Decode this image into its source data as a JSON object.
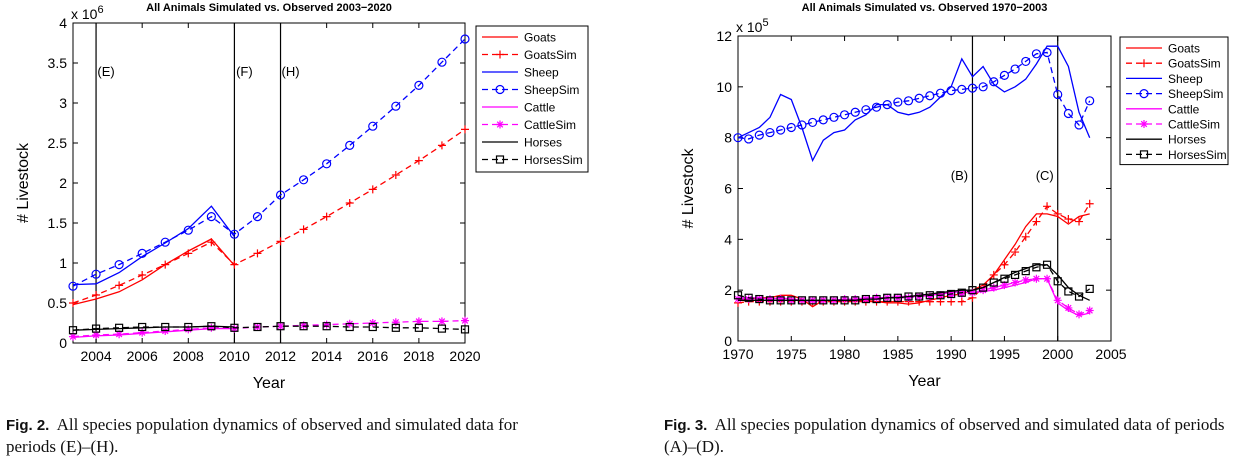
{
  "chart_data": [
    {
      "type": "line",
      "title": "All Animals Simulated vs. Observed 2003−2020",
      "xlabel": "Year",
      "ylabel": "# Livestock",
      "exponent_base": "x 10",
      "exponent_power": "6",
      "xlim": [
        2003,
        2020
      ],
      "ylim": [
        0,
        4
      ],
      "xticks": [
        "2004",
        "2006",
        "2008",
        "2010",
        "2012",
        "2014",
        "2016",
        "2018",
        "2020"
      ],
      "yticks": [
        "0",
        "0.5",
        "1",
        "1.5",
        "2",
        "2.5",
        "3",
        "3.5",
        "4"
      ],
      "vlines": [
        {
          "label": "(E)",
          "x": 2004
        },
        {
          "label": "(F)",
          "x": 2010
        },
        {
          "label": "(H)",
          "x": 2012
        }
      ],
      "legend_position": "top-right",
      "series": [
        {
          "name": "Goats",
          "color": "#ff0000",
          "dash": "solid",
          "marker": "none",
          "x": [
            2003,
            2004,
            2005,
            2006,
            2007,
            2008,
            2009,
            2010
          ],
          "y": [
            0.48,
            0.55,
            0.64,
            0.79,
            0.98,
            1.15,
            1.3,
            0.97
          ]
        },
        {
          "name": "GoatsSim",
          "color": "#ff0000",
          "dash": "dashed",
          "marker": "plus",
          "x": [
            2003,
            2004,
            2005,
            2006,
            2007,
            2008,
            2009,
            2010,
            2011,
            2012,
            2013,
            2014,
            2015,
            2016,
            2017,
            2018,
            2019,
            2020
          ],
          "y": [
            0.5,
            0.6,
            0.72,
            0.85,
            0.98,
            1.12,
            1.26,
            0.98,
            1.12,
            1.27,
            1.42,
            1.58,
            1.75,
            1.92,
            2.1,
            2.28,
            2.47,
            2.67
          ]
        },
        {
          "name": "Sheep",
          "color": "#0000ff",
          "dash": "solid",
          "marker": "none",
          "x": [
            2003,
            2004,
            2005,
            2006,
            2007,
            2008,
            2009,
            2010
          ],
          "y": [
            0.73,
            0.74,
            0.88,
            1.08,
            1.25,
            1.43,
            1.71,
            1.33
          ]
        },
        {
          "name": "SheepSim",
          "color": "#0000ff",
          "dash": "dashed",
          "marker": "circle",
          "x": [
            2003,
            2004,
            2005,
            2006,
            2007,
            2008,
            2009,
            2010,
            2011,
            2012,
            2013,
            2014,
            2015,
            2016,
            2017,
            2018,
            2019,
            2020
          ],
          "y": [
            0.71,
            0.86,
            0.98,
            1.12,
            1.26,
            1.41,
            1.58,
            1.36,
            1.58,
            1.85,
            2.04,
            2.24,
            2.47,
            2.71,
            2.96,
            3.22,
            3.51,
            3.8
          ]
        },
        {
          "name": "Cattle",
          "color": "#ff00ff",
          "dash": "solid",
          "marker": "none",
          "x": [
            2003,
            2004,
            2005,
            2006,
            2007,
            2008,
            2009,
            2010
          ],
          "y": [
            0.07,
            0.09,
            0.1,
            0.12,
            0.14,
            0.16,
            0.18,
            0.18
          ]
        },
        {
          "name": "CattleSim",
          "color": "#ff00ff",
          "dash": "dashed",
          "marker": "asterisk",
          "x": [
            2003,
            2004,
            2005,
            2006,
            2007,
            2008,
            2009,
            2010,
            2011,
            2012,
            2013,
            2014,
            2015,
            2016,
            2017,
            2018,
            2019,
            2020
          ],
          "y": [
            0.08,
            0.1,
            0.11,
            0.13,
            0.15,
            0.17,
            0.19,
            0.18,
            0.2,
            0.21,
            0.22,
            0.23,
            0.24,
            0.25,
            0.26,
            0.27,
            0.27,
            0.28
          ]
        },
        {
          "name": "Horses",
          "color": "#000000",
          "dash": "solid",
          "marker": "none",
          "x": [
            2003,
            2004,
            2005,
            2006,
            2007,
            2008,
            2009,
            2010
          ],
          "y": [
            0.16,
            0.17,
            0.18,
            0.19,
            0.2,
            0.2,
            0.21,
            0.2
          ]
        },
        {
          "name": "HorsesSim",
          "color": "#000000",
          "dash": "dashed",
          "marker": "square",
          "x": [
            2003,
            2004,
            2005,
            2006,
            2007,
            2008,
            2009,
            2010,
            2011,
            2012,
            2013,
            2014,
            2015,
            2016,
            2017,
            2018,
            2019,
            2020
          ],
          "y": [
            0.16,
            0.18,
            0.19,
            0.2,
            0.2,
            0.2,
            0.21,
            0.19,
            0.2,
            0.21,
            0.21,
            0.21,
            0.2,
            0.2,
            0.19,
            0.19,
            0.18,
            0.17
          ]
        }
      ]
    },
    {
      "type": "line",
      "title": "All Animals Simulated vs. Observed 1970−2003",
      "xlabel": "Year",
      "ylabel": "# Livestock",
      "exponent_base": "x 10",
      "exponent_power": "5",
      "xlim": [
        1970,
        2005
      ],
      "ylim": [
        0,
        12
      ],
      "xticks": [
        "1970",
        "1975",
        "1980",
        "1985",
        "1990",
        "1995",
        "2000",
        "2005"
      ],
      "yticks": [
        "0",
        "2",
        "4",
        "6",
        "8",
        "10",
        "12"
      ],
      "vlines": [
        {
          "label": "(B)",
          "x": 1992
        },
        {
          "label": "(C)",
          "x": 2000
        }
      ],
      "legend_position": "top-right",
      "series": [
        {
          "name": "Goats",
          "color": "#ff0000",
          "dash": "solid",
          "marker": "none",
          "x": [
            1970,
            1971,
            1972,
            1973,
            1974,
            1975,
            1976,
            1977,
            1978,
            1979,
            1980,
            1981,
            1982,
            1983,
            1984,
            1985,
            1986,
            1987,
            1988,
            1989,
            1990,
            1991,
            1992,
            1993,
            1994,
            1995,
            1996,
            1997,
            1998,
            1999,
            2000,
            2001,
            2002,
            2003
          ],
          "y": [
            1.6,
            1.65,
            1.7,
            1.7,
            1.8,
            1.8,
            1.65,
            1.35,
            1.6,
            1.6,
            1.6,
            1.6,
            1.6,
            1.55,
            1.5,
            1.5,
            1.45,
            1.5,
            1.6,
            1.7,
            1.8,
            1.85,
            2.0,
            2.2,
            2.6,
            3.2,
            3.8,
            4.5,
            5.0,
            5.0,
            4.9,
            4.6,
            4.9,
            5.0
          ]
        },
        {
          "name": "GoatsSim",
          "color": "#ff0000",
          "dash": "dashed",
          "marker": "plus",
          "x": [
            1970,
            1971,
            1972,
            1973,
            1974,
            1975,
            1976,
            1977,
            1978,
            1979,
            1980,
            1981,
            1982,
            1983,
            1984,
            1985,
            1986,
            1987,
            1988,
            1989,
            1990,
            1991,
            1992,
            1993,
            1994,
            1995,
            1996,
            1997,
            1998,
            1999,
            2000,
            2001,
            2002,
            2003
          ],
          "y": [
            1.5,
            1.55,
            1.55,
            1.55,
            1.55,
            1.55,
            1.55,
            1.55,
            1.55,
            1.55,
            1.55,
            1.55,
            1.55,
            1.55,
            1.55,
            1.55,
            1.55,
            1.55,
            1.55,
            1.55,
            1.55,
            1.55,
            1.7,
            2.1,
            2.6,
            3.0,
            3.5,
            4.1,
            4.7,
            5.3,
            5.0,
            4.8,
            4.7,
            5.4
          ]
        },
        {
          "name": "Sheep",
          "color": "#0000ff",
          "dash": "solid",
          "marker": "none",
          "x": [
            1970,
            1971,
            1972,
            1973,
            1974,
            1975,
            1976,
            1977,
            1978,
            1979,
            1980,
            1981,
            1982,
            1983,
            1984,
            1985,
            1986,
            1987,
            1988,
            1989,
            1990,
            1991,
            1992,
            1993,
            1994,
            1995,
            1996,
            1997,
            1998,
            1999,
            2000,
            2001,
            2002,
            2003
          ],
          "y": [
            8.0,
            8.2,
            8.4,
            8.8,
            9.7,
            9.5,
            8.4,
            7.1,
            7.9,
            8.2,
            8.3,
            8.7,
            8.9,
            9.3,
            9.3,
            9.0,
            8.9,
            9.0,
            9.2,
            9.6,
            10.0,
            11.1,
            10.4,
            10.8,
            10.1,
            9.8,
            10.0,
            10.3,
            10.9,
            11.6,
            11.6,
            10.8,
            9.0,
            8.0
          ]
        },
        {
          "name": "SheepSim",
          "color": "#0000ff",
          "dash": "dashed",
          "marker": "circle",
          "x": [
            1970,
            1971,
            1972,
            1973,
            1974,
            1975,
            1976,
            1977,
            1978,
            1979,
            1980,
            1981,
            1982,
            1983,
            1984,
            1985,
            1986,
            1987,
            1988,
            1989,
            1990,
            1991,
            1992,
            1993,
            1994,
            1995,
            1996,
            1997,
            1998,
            1999,
            2000,
            2001,
            2002,
            2003
          ],
          "y": [
            8.0,
            7.95,
            8.1,
            8.2,
            8.3,
            8.4,
            8.5,
            8.6,
            8.7,
            8.8,
            8.9,
            9.0,
            9.1,
            9.2,
            9.3,
            9.4,
            9.45,
            9.55,
            9.65,
            9.75,
            9.85,
            9.9,
            9.95,
            10.0,
            10.2,
            10.45,
            10.7,
            11.0,
            11.3,
            11.35,
            9.7,
            8.95,
            8.5,
            9.45
          ]
        },
        {
          "name": "Cattle",
          "color": "#ff00ff",
          "dash": "solid",
          "marker": "none",
          "x": [
            1970,
            1971,
            1972,
            1973,
            1974,
            1975,
            1976,
            1977,
            1978,
            1979,
            1980,
            1981,
            1982,
            1983,
            1984,
            1985,
            1986,
            1987,
            1988,
            1989,
            1990,
            1991,
            1992,
            1993,
            1994,
            1995,
            1996,
            1997,
            1998,
            1999,
            2000,
            2001,
            2002,
            2003
          ],
          "y": [
            1.7,
            1.7,
            1.7,
            1.65,
            1.7,
            1.65,
            1.6,
            1.55,
            1.6,
            1.6,
            1.65,
            1.65,
            1.7,
            1.7,
            1.7,
            1.75,
            1.75,
            1.75,
            1.8,
            1.85,
            1.9,
            1.95,
            1.9,
            1.95,
            2.0,
            2.1,
            2.2,
            2.3,
            2.45,
            2.45,
            1.5,
            1.2,
            1.0,
            1.1
          ]
        },
        {
          "name": "CattleSim",
          "color": "#ff00ff",
          "dash": "dashed",
          "marker": "asterisk",
          "x": [
            1970,
            1971,
            1972,
            1973,
            1974,
            1975,
            1976,
            1977,
            1978,
            1979,
            1980,
            1981,
            1982,
            1983,
            1984,
            1985,
            1986,
            1987,
            1988,
            1989,
            1990,
            1991,
            1992,
            1993,
            1994,
            1995,
            1996,
            1997,
            1998,
            1999,
            2000,
            2001,
            2002,
            2003
          ],
          "y": [
            1.65,
            1.65,
            1.65,
            1.65,
            1.65,
            1.6,
            1.6,
            1.6,
            1.6,
            1.6,
            1.65,
            1.65,
            1.65,
            1.7,
            1.7,
            1.7,
            1.7,
            1.75,
            1.75,
            1.8,
            1.8,
            1.85,
            1.9,
            2.0,
            2.1,
            2.2,
            2.3,
            2.4,
            2.45,
            2.45,
            1.6,
            1.3,
            1.05,
            1.2
          ]
        },
        {
          "name": "Horses",
          "color": "#000000",
          "dash": "solid",
          "marker": "none",
          "x": [
            1970,
            1971,
            1972,
            1973,
            1974,
            1975,
            1976,
            1977,
            1978,
            1979,
            1980,
            1981,
            1982,
            1983,
            1984,
            1985,
            1986,
            1987,
            1988,
            1989,
            1990,
            1991,
            1992,
            1993,
            1994,
            1995,
            1996,
            1997,
            1998,
            1999,
            2000,
            2001,
            2002,
            2003
          ],
          "y": [
            1.6,
            1.6,
            1.6,
            1.6,
            1.6,
            1.6,
            1.6,
            1.6,
            1.6,
            1.6,
            1.6,
            1.6,
            1.65,
            1.65,
            1.7,
            1.7,
            1.75,
            1.8,
            1.85,
            1.9,
            1.95,
            2.0,
            2.0,
            2.1,
            2.3,
            2.5,
            2.7,
            2.85,
            3.0,
            3.0,
            2.6,
            2.1,
            1.8,
            1.6
          ]
        },
        {
          "name": "HorsesSim",
          "color": "#000000",
          "dash": "dashed",
          "marker": "square",
          "x": [
            1970,
            1971,
            1972,
            1973,
            1974,
            1975,
            1976,
            1977,
            1978,
            1979,
            1980,
            1981,
            1982,
            1983,
            1984,
            1985,
            1986,
            1987,
            1988,
            1989,
            1990,
            1991,
            1992,
            1993,
            1994,
            1995,
            1996,
            1997,
            1998,
            1999,
            2000,
            2001,
            2002,
            2003
          ],
          "y": [
            1.8,
            1.7,
            1.65,
            1.6,
            1.6,
            1.6,
            1.6,
            1.6,
            1.6,
            1.6,
            1.6,
            1.6,
            1.65,
            1.65,
            1.7,
            1.7,
            1.75,
            1.75,
            1.8,
            1.8,
            1.85,
            1.9,
            2.0,
            2.1,
            2.3,
            2.45,
            2.6,
            2.75,
            2.9,
            3.0,
            2.35,
            1.95,
            1.75,
            2.05
          ]
        }
      ]
    }
  ],
  "captions": [
    {
      "figure": "Fig. 2.",
      "text": "All species population dynamics of observed and simulated data for periods (E)–(H)."
    },
    {
      "figure": "Fig. 3.",
      "text": "All species population dynamics of observed and simulated data of periods (A)–(D)."
    }
  ]
}
